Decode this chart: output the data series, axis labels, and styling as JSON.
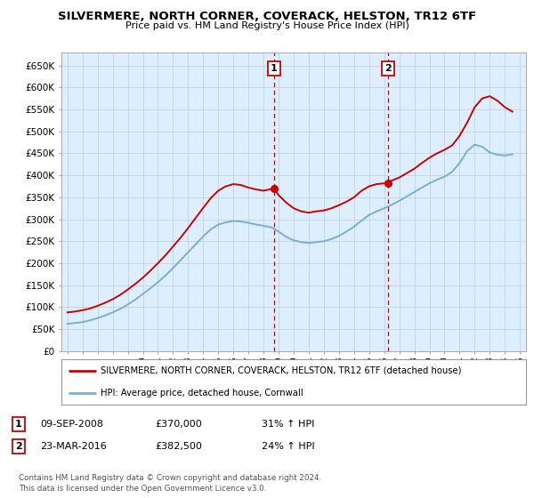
{
  "title": "SILVERMERE, NORTH CORNER, COVERACK, HELSTON, TR12 6TF",
  "subtitle": "Price paid vs. HM Land Registry's House Price Index (HPI)",
  "ytick_values": [
    0,
    50000,
    100000,
    150000,
    200000,
    250000,
    300000,
    350000,
    400000,
    450000,
    500000,
    550000,
    600000,
    650000
  ],
  "ylim": [
    0,
    680000
  ],
  "xlim_start": 1994.6,
  "xlim_end": 2025.4,
  "red_color": "#cc0000",
  "blue_color": "#7aaed6",
  "background_color": "#ddeeff",
  "fig_bg_color": "#ffffff",
  "marker1_year": 2008.69,
  "marker1_value": 370000,
  "marker1_label": "1",
  "marker2_year": 2016.23,
  "marker2_value": 382500,
  "marker2_label": "2",
  "legend_line1": "SILVERMERE, NORTH CORNER, COVERACK, HELSTON, TR12 6TF (detached house)",
  "legend_line2": "HPI: Average price, detached house, Cornwall",
  "annotation1_date": "09-SEP-2008",
  "annotation1_price": "£370,000",
  "annotation1_hpi": "31% ↑ HPI",
  "annotation2_date": "23-MAR-2016",
  "annotation2_price": "£382,500",
  "annotation2_hpi": "24% ↑ HPI",
  "footer": "Contains HM Land Registry data © Crown copyright and database right 2024.\nThis data is licensed under the Open Government Licence v3.0.",
  "red_x": [
    1995.0,
    1995.5,
    1996.0,
    1996.5,
    1997.0,
    1997.5,
    1998.0,
    1998.5,
    1999.0,
    1999.5,
    2000.0,
    2000.5,
    2001.0,
    2001.5,
    2002.0,
    2002.5,
    2003.0,
    2003.5,
    2004.0,
    2004.5,
    2005.0,
    2005.5,
    2006.0,
    2006.5,
    2007.0,
    2007.5,
    2008.0,
    2008.69,
    2009.0,
    2009.5,
    2010.0,
    2010.5,
    2011.0,
    2011.5,
    2012.0,
    2012.5,
    2013.0,
    2013.5,
    2014.0,
    2014.5,
    2015.0,
    2015.5,
    2016.23,
    2016.5,
    2017.0,
    2017.5,
    2018.0,
    2018.5,
    2019.0,
    2019.5,
    2020.0,
    2020.5,
    2021.0,
    2021.5,
    2022.0,
    2022.5,
    2023.0,
    2023.5,
    2024.0,
    2024.5
  ],
  "red_y": [
    88000,
    90000,
    93000,
    97000,
    103000,
    110000,
    118000,
    128000,
    140000,
    153000,
    167000,
    183000,
    200000,
    218000,
    238000,
    258000,
    280000,
    303000,
    326000,
    348000,
    365000,
    375000,
    380000,
    378000,
    372000,
    368000,
    365000,
    370000,
    355000,
    338000,
    325000,
    318000,
    315000,
    318000,
    320000,
    325000,
    332000,
    340000,
    350000,
    365000,
    375000,
    380000,
    382500,
    388000,
    395000,
    405000,
    415000,
    428000,
    440000,
    450000,
    458000,
    468000,
    490000,
    520000,
    555000,
    575000,
    580000,
    570000,
    555000,
    545000
  ],
  "blue_x": [
    1995.0,
    1995.5,
    1996.0,
    1996.5,
    1997.0,
    1997.5,
    1998.0,
    1998.5,
    1999.0,
    1999.5,
    2000.0,
    2000.5,
    2001.0,
    2001.5,
    2002.0,
    2002.5,
    2003.0,
    2003.5,
    2004.0,
    2004.5,
    2005.0,
    2005.5,
    2006.0,
    2006.5,
    2007.0,
    2007.5,
    2008.0,
    2008.5,
    2009.0,
    2009.5,
    2010.0,
    2010.5,
    2011.0,
    2011.5,
    2012.0,
    2012.5,
    2013.0,
    2013.5,
    2014.0,
    2014.5,
    2015.0,
    2015.5,
    2016.0,
    2016.5,
    2017.0,
    2017.5,
    2018.0,
    2018.5,
    2019.0,
    2019.5,
    2020.0,
    2020.5,
    2021.0,
    2021.5,
    2022.0,
    2022.5,
    2023.0,
    2023.5,
    2024.0,
    2024.5
  ],
  "blue_y": [
    62000,
    64000,
    66000,
    70000,
    75000,
    81000,
    88000,
    96000,
    106000,
    117000,
    130000,
    143000,
    157000,
    172000,
    189000,
    207000,
    225000,
    243000,
    261000,
    277000,
    288000,
    293000,
    296000,
    295000,
    292000,
    288000,
    285000,
    282000,
    272000,
    260000,
    252000,
    248000,
    246000,
    248000,
    250000,
    255000,
    262000,
    272000,
    283000,
    297000,
    310000,
    318000,
    325000,
    333000,
    342000,
    352000,
    362000,
    372000,
    382000,
    390000,
    397000,
    408000,
    428000,
    455000,
    470000,
    465000,
    452000,
    447000,
    445000,
    448000
  ]
}
